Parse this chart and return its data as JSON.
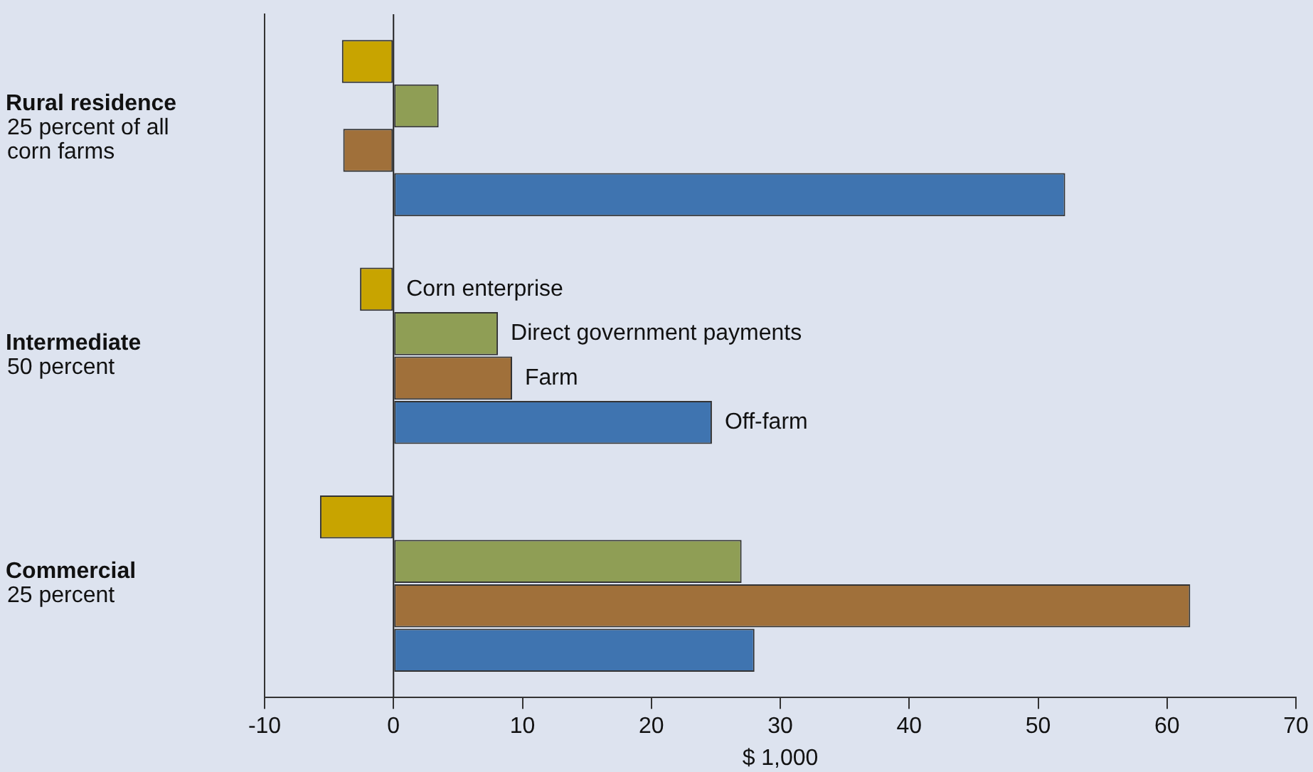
{
  "chart_data": {
    "type": "bar",
    "orientation": "horizontal",
    "xlabel": "$ 1,000",
    "categories": [
      "Rural residence\n25 percent of all\ncorn farms",
      "Intermediate\n50 percent",
      "Commercial\n25 percent"
    ],
    "series": [
      {
        "name": "Corn enterprise",
        "color": "#c8a400",
        "values": [
          -4.0,
          -2.6,
          -5.7
        ]
      },
      {
        "name": "Direct government payments",
        "color": "#8f9e55",
        "values": [
          3.5,
          8.1,
          27.0
        ]
      },
      {
        "name": "Farm",
        "color": "#a0703a",
        "values": [
          -3.9,
          9.2,
          61.8
        ]
      },
      {
        "name": "Off-farm",
        "color": "#3f74b0",
        "values": [
          52.1,
          24.7,
          28.0
        ]
      }
    ],
    "xlim": [
      -10,
      70
    ],
    "xticks": [
      -10,
      0,
      10,
      20,
      30,
      40,
      50,
      60,
      70
    ],
    "ref_lines": [
      {
        "axis": "x",
        "value": 0,
        "color": "#222222"
      }
    ],
    "grid": false
  }
}
